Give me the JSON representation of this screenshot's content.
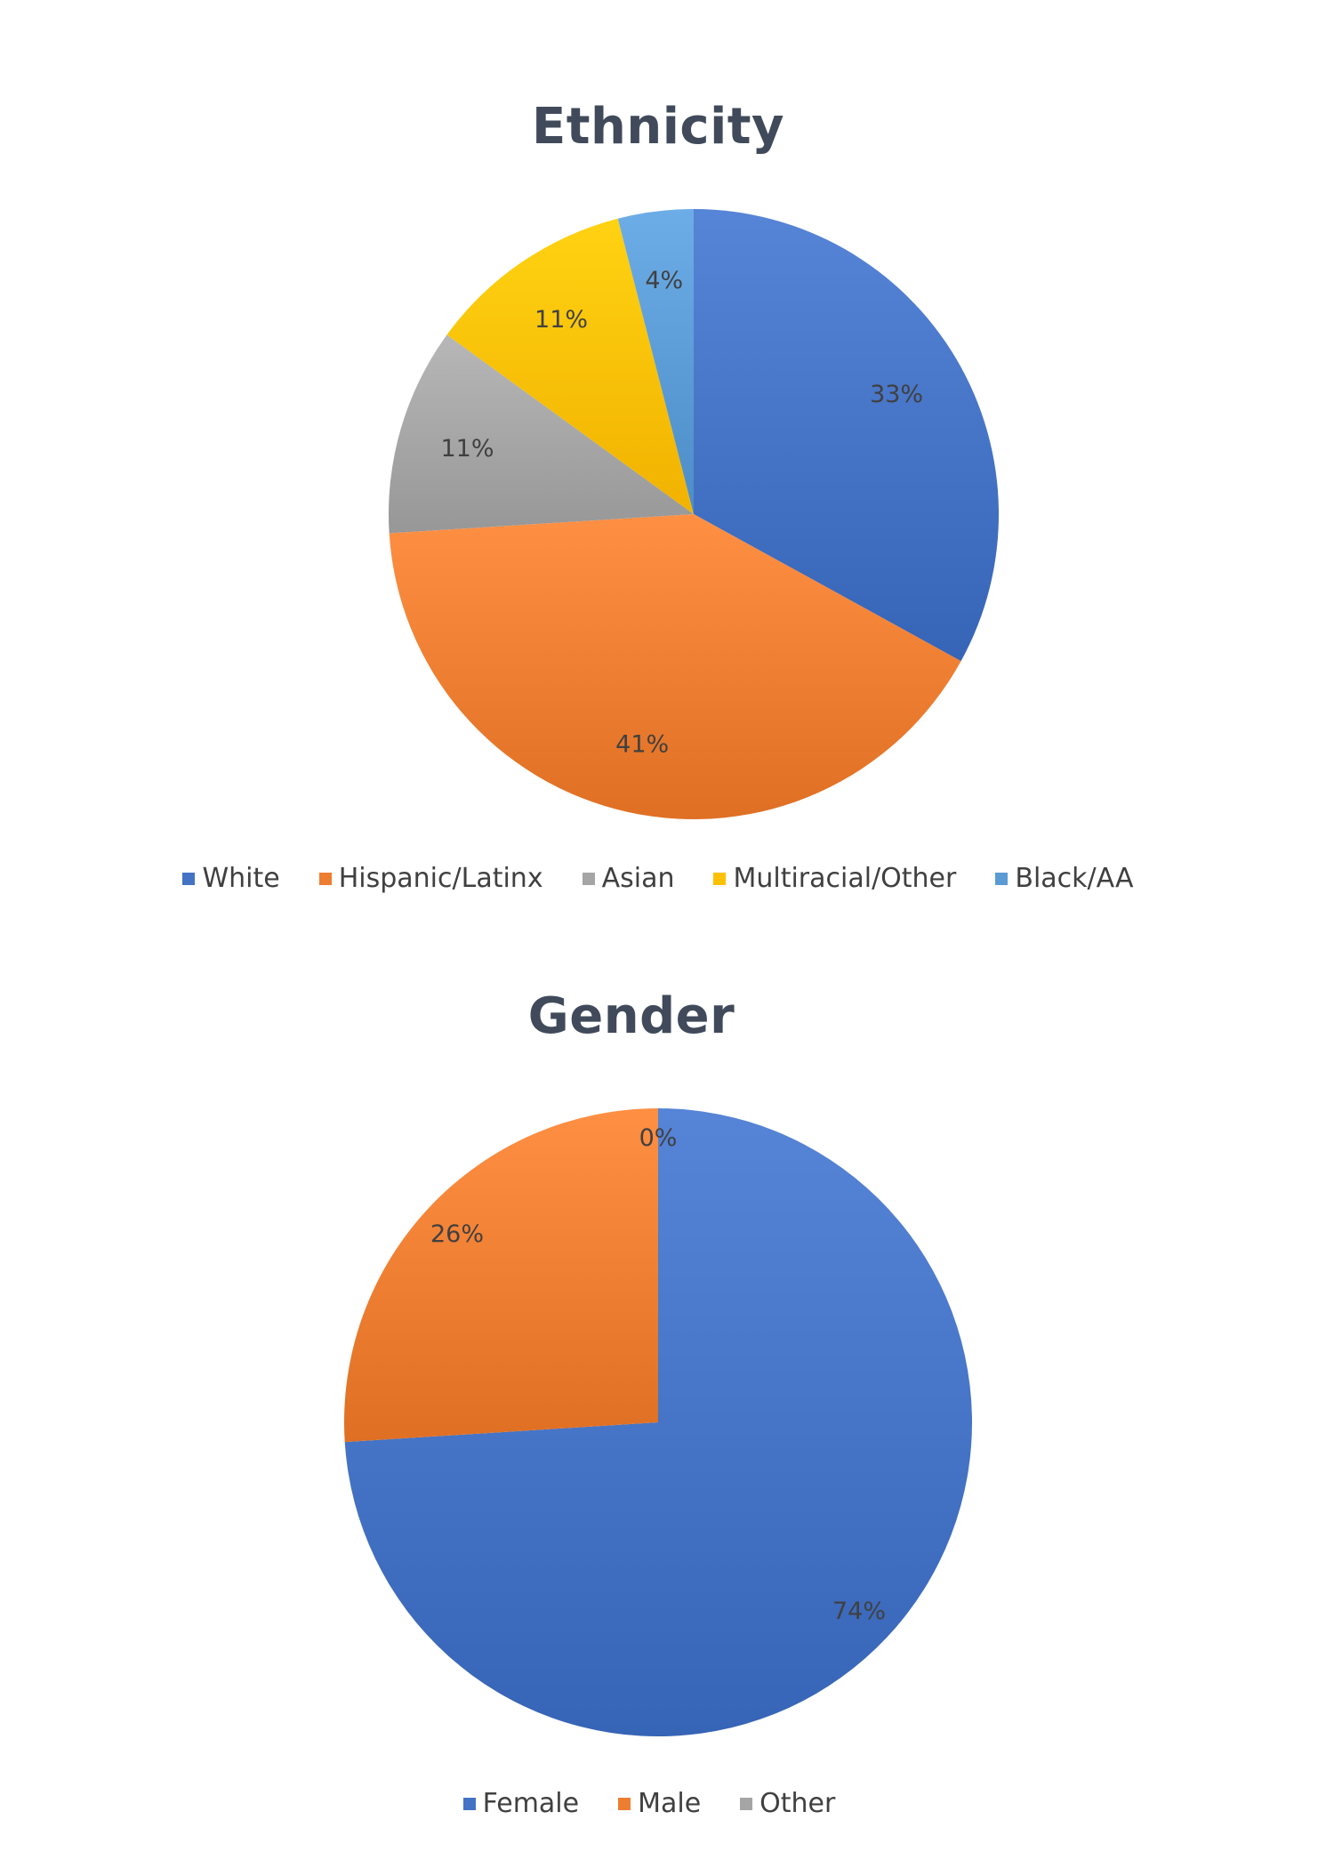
{
  "chart_data": [
    {
      "type": "pie",
      "title": "Ethnicity",
      "categories": [
        "White",
        "Hispanic/Latinx",
        "Asian",
        "Multiracial/Other",
        "Black/AA"
      ],
      "values": [
        33,
        41,
        11,
        11,
        4
      ],
      "data_labels": [
        "33%",
        "41%",
        "11%",
        "11%",
        "4%"
      ],
      "colors": [
        "#4472C4",
        "#ED7D31",
        "#A5A5A5",
        "#FFC000",
        "#5B9BD5"
      ],
      "legend": "bottom"
    },
    {
      "type": "pie",
      "title": "Gender",
      "categories": [
        "Female",
        "Male",
        "Other"
      ],
      "values": [
        74,
        26,
        0
      ],
      "data_labels": [
        "74%",
        "26%",
        "0%"
      ],
      "colors": [
        "#4472C4",
        "#ED7D31",
        "#A5A5A5"
      ],
      "legend": "bottom"
    }
  ]
}
